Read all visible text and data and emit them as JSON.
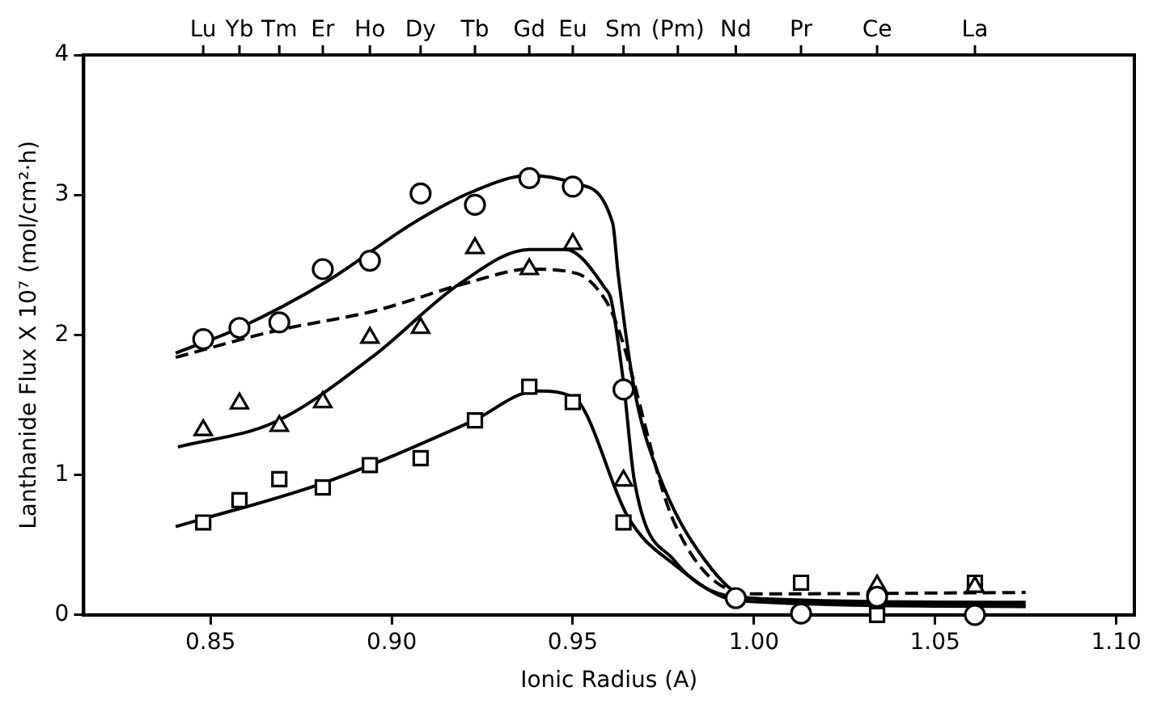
{
  "chart_data": {
    "type": "scatter",
    "xlabel": "Ionic Radius (A)",
    "ylabel": "Lanthanide Flux X 10⁷ (mol/cm²·h)",
    "xlim": [
      0.815,
      1.105
    ],
    "xticks": [
      {
        "value": 0.85,
        "label": "0.85"
      },
      {
        "value": 0.9,
        "label": "0.90"
      },
      {
        "value": 0.95,
        "label": "0.95"
      },
      {
        "value": 1.0,
        "label": "1.00"
      },
      {
        "value": 1.05,
        "label": "1.05"
      },
      {
        "value": 1.1,
        "label": "1.10"
      }
    ],
    "annotations": [
      {
        "text": "Lu",
        "x": 0.848
      },
      {
        "text": "Yb",
        "x": 0.858
      },
      {
        "text": "Tm",
        "x": 0.869
      },
      {
        "text": "Er",
        "x": 0.881
      },
      {
        "text": "Ho",
        "x": 0.894
      },
      {
        "text": "Dy",
        "x": 0.908
      },
      {
        "text": "Tb",
        "x": 0.923
      },
      {
        "text": "Gd",
        "x": 0.938
      },
      {
        "text": "Eu",
        "x": 0.95
      },
      {
        "text": "Sm",
        "x": 0.964
      },
      {
        "text": "(Pm)",
        "x": 0.979
      },
      {
        "text": "Nd",
        "x": 0.995
      },
      {
        "text": "Pr",
        "x": 1.013
      },
      {
        "text": "Ce",
        "x": 1.034
      },
      {
        "text": "La",
        "x": 1.061
      }
    ],
    "ylim": [
      0,
      4
    ],
    "yticks": [
      0,
      1,
      2,
      3,
      4
    ],
    "grid": false,
    "legend": false,
    "series": [
      {
        "type": "scatter",
        "marker": "circle",
        "color": "#000000",
        "x": [
          0.848,
          0.858,
          0.869,
          0.881,
          0.894,
          0.908,
          0.923,
          0.938,
          0.95,
          0.964,
          0.995,
          1.013,
          1.034,
          1.061
        ],
        "values": [
          1.97,
          2.05,
          2.09,
          2.47,
          2.53,
          3.01,
          2.93,
          3.12,
          3.06,
          1.61,
          0.12,
          0.01,
          0.13,
          0.0
        ]
      },
      {
        "type": "scatter",
        "marker": "triangle",
        "color": "#000000",
        "x": [
          0.848,
          0.858,
          0.869,
          0.881,
          0.894,
          0.908,
          0.923,
          0.938,
          0.95,
          0.964,
          1.034,
          1.061
        ],
        "values": [
          1.32,
          1.51,
          1.35,
          1.52,
          1.98,
          2.05,
          2.62,
          2.47,
          2.65,
          0.96,
          0.21,
          0.2
        ]
      },
      {
        "type": "scatter",
        "marker": "square",
        "color": "#000000",
        "x": [
          0.848,
          0.858,
          0.869,
          0.881,
          0.894,
          0.908,
          0.923,
          0.938,
          0.95,
          0.964,
          1.013,
          1.034,
          1.061
        ],
        "values": [
          0.66,
          0.82,
          0.97,
          0.91,
          1.07,
          1.12,
          1.39,
          1.63,
          1.52,
          0.66,
          0.23,
          0.0,
          0.23
        ]
      },
      {
        "type": "line",
        "marker": "none",
        "line_style": "solid",
        "color": "#000000",
        "x": [
          0.8404,
          0.858,
          0.882,
          0.906,
          0.922,
          0.938,
          0.951,
          0.961,
          0.9625,
          0.967,
          0.9735,
          0.9865,
          0.999,
          1.075
        ],
        "values": [
          1.87,
          2.05,
          2.38,
          2.8,
          3.02,
          3.14,
          3.08,
          2.8,
          2.44,
          1.61,
          1.02,
          0.39,
          0.12,
          0.07
        ]
      },
      {
        "type": "line",
        "marker": "none",
        "line_style": "solid",
        "color": "#000000",
        "x": [
          0.841,
          0.868,
          0.895,
          0.919,
          0.938,
          0.948,
          0.959,
          0.9606,
          0.964,
          0.967,
          0.978,
          0.9976,
          1.075
        ],
        "values": [
          1.2,
          1.38,
          1.85,
          2.37,
          2.61,
          2.61,
          2.33,
          2.25,
          1.66,
          0.96,
          0.39,
          0.12,
          0.09
        ]
      },
      {
        "type": "line",
        "marker": "none",
        "line_style": "solid",
        "color": "#000000",
        "x": [
          0.8404,
          0.882,
          0.922,
          0.94,
          0.951,
          0.954,
          0.965,
          0.978,
          0.996,
          1.075
        ],
        "values": [
          0.63,
          0.95,
          1.38,
          1.6,
          1.54,
          1.42,
          0.71,
          0.36,
          0.1,
          0.06
        ]
      },
      {
        "type": "line",
        "marker": "none",
        "line_style": "dashed",
        "color": "#000000",
        "x": [
          0.8404,
          0.868,
          0.895,
          0.922,
          0.938,
          0.951,
          0.959,
          0.9625,
          0.978,
          0.999,
          1.075
        ],
        "values": [
          1.84,
          2.03,
          2.17,
          2.38,
          2.47,
          2.44,
          2.25,
          2.05,
          0.66,
          0.15,
          0.16
        ]
      }
    ]
  }
}
